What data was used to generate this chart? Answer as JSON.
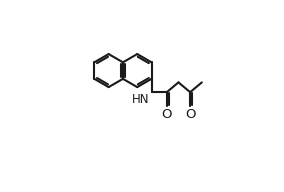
{
  "background_color": "#ffffff",
  "line_color": "#1a1a1a",
  "line_width": 1.5,
  "text_color": "#1a1a1a",
  "hn_label": "HN",
  "o1_label": "O",
  "o2_label": "O",
  "font_size": 8.5,
  "figsize": [
    2.84,
    1.92
  ],
  "dpi": 100,
  "xlim": [
    -0.5,
    6.5
  ],
  "ylim": [
    -0.5,
    5.5
  ]
}
